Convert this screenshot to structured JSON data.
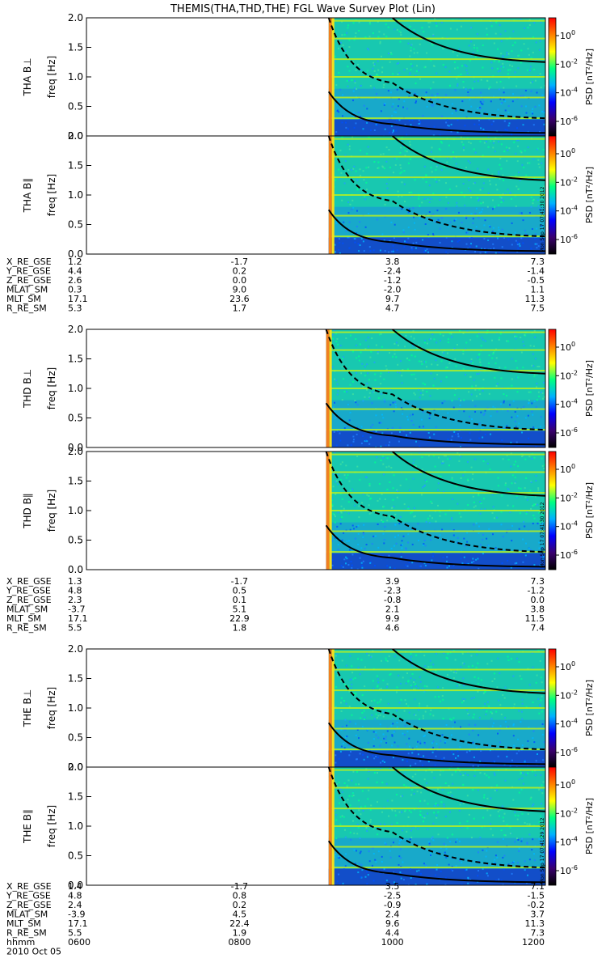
{
  "chart_data": {
    "type": "heatmap",
    "title": "THEMIS(THA,THD,THE) FGL Wave Survey Plot (Lin)",
    "freq_range_hz": [
      0.0,
      2.0
    ],
    "freq_ticks": [
      "0.0",
      "0.5",
      "1.0",
      "1.5",
      "2.0"
    ],
    "time_range_hhmm": [
      "0600",
      "1200"
    ],
    "time_ticks": [
      "0600",
      "0800",
      "1000",
      "1200"
    ],
    "time_axis_label": "hhmm",
    "date_label": "2010 Oct 05",
    "colorbar": {
      "label": "PSD [nT²/Hz]",
      "scale": "log",
      "tick_exponents": [
        "0",
        "-2",
        "-4",
        "-6"
      ],
      "tick_base": "10",
      "colors": [
        "#000000",
        "#3a0070",
        "#0000ff",
        "#00b0ff",
        "#00ff80",
        "#ffff00",
        "#ff8000",
        "#ff0000"
      ]
    },
    "panels": [
      {
        "name": "THA B⊥",
        "ylabel": "freq [Hz]",
        "probe": "THA",
        "data_start_hhmm": "0910",
        "stamp": ""
      },
      {
        "name": "THA B∥",
        "ylabel": "freq [Hz]",
        "probe": "THA",
        "data_start_hhmm": "0910",
        "stamp": "Mon Sep 17 07:41:30 2012"
      },
      {
        "name": "THD B⊥",
        "ylabel": "freq [Hz]",
        "probe": "THD",
        "data_start_hhmm": "0908",
        "stamp": ""
      },
      {
        "name": "THD B∥",
        "ylabel": "freq [Hz]",
        "probe": "THD",
        "data_start_hhmm": "0908",
        "stamp": "Mon Sep 17 07:41:30 2012"
      },
      {
        "name": "THE B⊥",
        "ylabel": "freq [Hz]",
        "probe": "THE",
        "data_start_hhmm": "0910",
        "stamp": ""
      },
      {
        "name": "THE B∥",
        "ylabel": "freq [Hz]",
        "probe": "THE",
        "data_start_hhmm": "0910",
        "stamp": "Mon Sep 17 07:41:29 2012"
      }
    ],
    "ephemeris": [
      {
        "probe": "THA",
        "rows": [
          {
            "label": "X_RE_GSE",
            "values": [
              "1.2",
              "-1.7",
              "3.8",
              "7.3"
            ]
          },
          {
            "label": "Y_RE_GSE",
            "values": [
              "4.4",
              "0.2",
              "-2.4",
              "-1.4"
            ]
          },
          {
            "label": "Z_RE_GSE",
            "values": [
              "2.6",
              "0.0",
              "-1.2",
              "-0.5"
            ]
          },
          {
            "label": "MLAT_SM",
            "values": [
              "0.3",
              "9.0",
              "-2.0",
              "1.1"
            ]
          },
          {
            "label": "MLT_SM",
            "values": [
              "17.1",
              "23.6",
              "9.7",
              "11.3"
            ]
          },
          {
            "label": "R_RE_SM",
            "values": [
              "5.3",
              "1.7",
              "4.7",
              "7.5"
            ]
          }
        ]
      },
      {
        "probe": "THD",
        "rows": [
          {
            "label": "X_RE_GSE",
            "values": [
              "1.3",
              "-1.7",
              "3.9",
              "7.3"
            ]
          },
          {
            "label": "Y_RE_GSE",
            "values": [
              "4.8",
              "0.5",
              "-2.3",
              "-1.2"
            ]
          },
          {
            "label": "Z_RE_GSE",
            "values": [
              "2.3",
              "0.1",
              "-0.8",
              "0.0"
            ]
          },
          {
            "label": "MLAT_SM",
            "values": [
              "-3.7",
              "5.1",
              "2.1",
              "3.8"
            ]
          },
          {
            "label": "MLT_SM",
            "values": [
              "17.1",
              "22.9",
              "9.9",
              "11.5"
            ]
          },
          {
            "label": "R_RE_SM",
            "values": [
              "5.5",
              "1.8",
              "4.6",
              "7.4"
            ]
          }
        ]
      },
      {
        "probe": "THE",
        "rows": [
          {
            "label": "X_RE_GSE",
            "values": [
              "1.4",
              "-1.7",
              "3.5",
              "7.1"
            ]
          },
          {
            "label": "Y_RE_GSE",
            "values": [
              "4.8",
              "0.8",
              "-2.5",
              "-1.5"
            ]
          },
          {
            "label": "Z_RE_GSE",
            "values": [
              "2.4",
              "0.2",
              "-0.9",
              "-0.2"
            ]
          },
          {
            "label": "MLAT_SM",
            "values": [
              "-3.9",
              "4.5",
              "2.4",
              "3.7"
            ]
          },
          {
            "label": "MLT_SM",
            "values": [
              "17.1",
              "22.4",
              "9.6",
              "11.3"
            ]
          },
          {
            "label": "R_RE_SM",
            "values": [
              "5.5",
              "1.9",
              "4.4",
              "7.3"
            ]
          }
        ]
      }
    ],
    "gyro_lines": {
      "solid_upper": [
        [
          "1000",
          "2.0"
        ],
        [
          "1200",
          "1.25"
        ]
      ],
      "dashed": [
        [
          "0910",
          "2.0"
        ],
        [
          "1000",
          "0.9"
        ],
        [
          "1200",
          "0.3"
        ]
      ],
      "solid_lower": [
        [
          "0910",
          "0.75"
        ],
        [
          "1000",
          "0.2"
        ],
        [
          "1200",
          "0.05"
        ]
      ]
    },
    "harmonic_bands_hz": [
      "0.3",
      "0.65",
      "1.0",
      "1.3",
      "1.65",
      "1.95"
    ]
  }
}
